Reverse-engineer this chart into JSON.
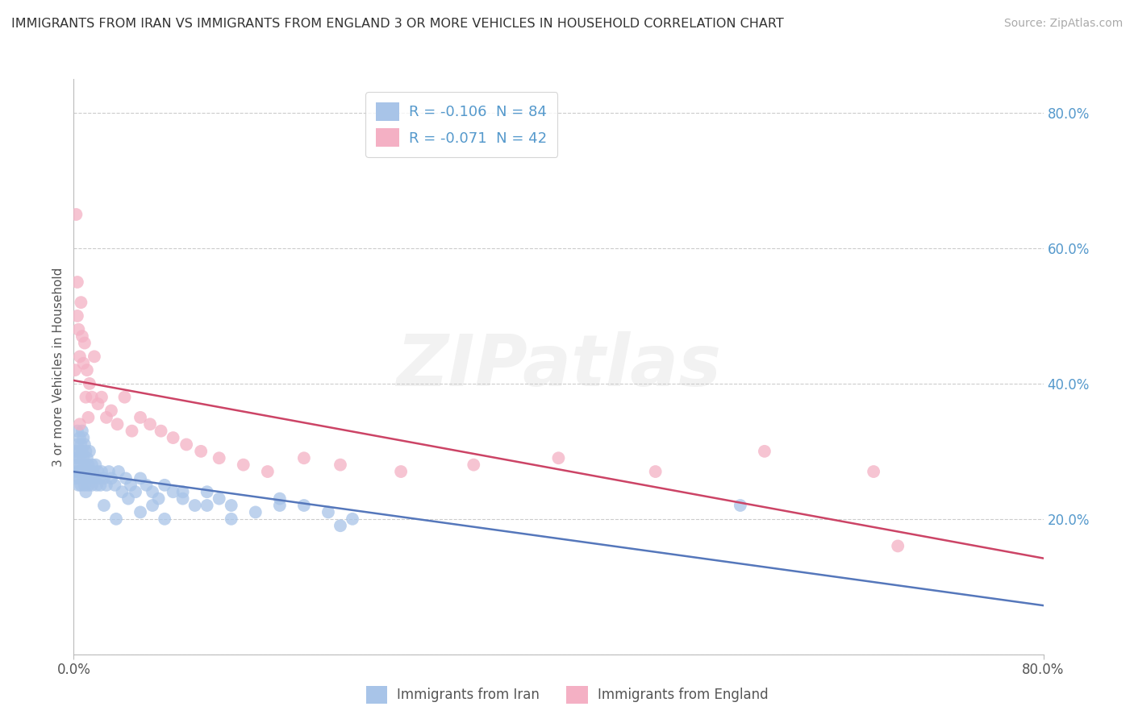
{
  "title": "IMMIGRANTS FROM IRAN VS IMMIGRANTS FROM ENGLAND 3 OR MORE VEHICLES IN HOUSEHOLD CORRELATION CHART",
  "source": "Source: ZipAtlas.com",
  "ylabel": "3 or more Vehicles in Household",
  "iran_legend_text": "R = -0.106  N = 84",
  "england_legend_text": "R = -0.071  N = 42",
  "iran_scatter_color": "#a8c4e8",
  "england_scatter_color": "#f4b0c4",
  "iran_line_color": "#5577bb",
  "england_line_color": "#cc4466",
  "iran_label": "Immigrants from Iran",
  "england_label": "Immigrants from England",
  "watermark_text": "ZIPatlas",
  "title_color": "#333333",
  "source_color": "#aaaaaa",
  "right_axis_color": "#5599cc",
  "legend_text_color": "#5599cc",
  "xlim": [
    0.0,
    0.8
  ],
  "ylim": [
    0.0,
    0.85
  ],
  "iran_x": [
    0.001,
    0.001,
    0.002,
    0.002,
    0.003,
    0.003,
    0.003,
    0.004,
    0.004,
    0.004,
    0.005,
    0.005,
    0.005,
    0.005,
    0.006,
    0.006,
    0.006,
    0.007,
    0.007,
    0.007,
    0.008,
    0.008,
    0.008,
    0.009,
    0.009,
    0.009,
    0.01,
    0.01,
    0.01,
    0.011,
    0.011,
    0.012,
    0.012,
    0.013,
    0.013,
    0.014,
    0.015,
    0.015,
    0.016,
    0.017,
    0.018,
    0.019,
    0.02,
    0.021,
    0.022,
    0.023,
    0.025,
    0.027,
    0.029,
    0.031,
    0.034,
    0.037,
    0.04,
    0.043,
    0.047,
    0.051,
    0.055,
    0.06,
    0.065,
    0.07,
    0.075,
    0.082,
    0.09,
    0.1,
    0.11,
    0.12,
    0.13,
    0.15,
    0.17,
    0.19,
    0.21,
    0.23,
    0.025,
    0.035,
    0.045,
    0.055,
    0.065,
    0.075,
    0.09,
    0.11,
    0.13,
    0.17,
    0.22,
    0.55
  ],
  "iran_y": [
    0.27,
    0.3,
    0.26,
    0.29,
    0.28,
    0.31,
    0.33,
    0.27,
    0.3,
    0.25,
    0.29,
    0.32,
    0.27,
    0.26,
    0.31,
    0.28,
    0.25,
    0.3,
    0.27,
    0.33,
    0.29,
    0.26,
    0.32,
    0.28,
    0.25,
    0.31,
    0.27,
    0.3,
    0.24,
    0.29,
    0.26,
    0.28,
    0.25,
    0.3,
    0.27,
    0.26,
    0.28,
    0.25,
    0.27,
    0.26,
    0.28,
    0.25,
    0.27,
    0.26,
    0.25,
    0.27,
    0.26,
    0.25,
    0.27,
    0.26,
    0.25,
    0.27,
    0.24,
    0.26,
    0.25,
    0.24,
    0.26,
    0.25,
    0.24,
    0.23,
    0.25,
    0.24,
    0.23,
    0.22,
    0.24,
    0.23,
    0.22,
    0.21,
    0.23,
    0.22,
    0.21,
    0.2,
    0.22,
    0.2,
    0.23,
    0.21,
    0.22,
    0.2,
    0.24,
    0.22,
    0.2,
    0.22,
    0.19,
    0.22
  ],
  "england_x": [
    0.001,
    0.002,
    0.003,
    0.003,
    0.004,
    0.005,
    0.006,
    0.007,
    0.008,
    0.009,
    0.01,
    0.011,
    0.012,
    0.013,
    0.015,
    0.017,
    0.02,
    0.023,
    0.027,
    0.031,
    0.036,
    0.042,
    0.048,
    0.055,
    0.063,
    0.072,
    0.082,
    0.093,
    0.105,
    0.12,
    0.14,
    0.16,
    0.19,
    0.22,
    0.27,
    0.33,
    0.4,
    0.48,
    0.57,
    0.66,
    0.68,
    0.005
  ],
  "england_y": [
    0.42,
    0.65,
    0.5,
    0.55,
    0.48,
    0.44,
    0.52,
    0.47,
    0.43,
    0.46,
    0.38,
    0.42,
    0.35,
    0.4,
    0.38,
    0.44,
    0.37,
    0.38,
    0.35,
    0.36,
    0.34,
    0.38,
    0.33,
    0.35,
    0.34,
    0.33,
    0.32,
    0.31,
    0.3,
    0.29,
    0.28,
    0.27,
    0.29,
    0.28,
    0.27,
    0.28,
    0.29,
    0.27,
    0.3,
    0.27,
    0.16,
    0.34
  ]
}
